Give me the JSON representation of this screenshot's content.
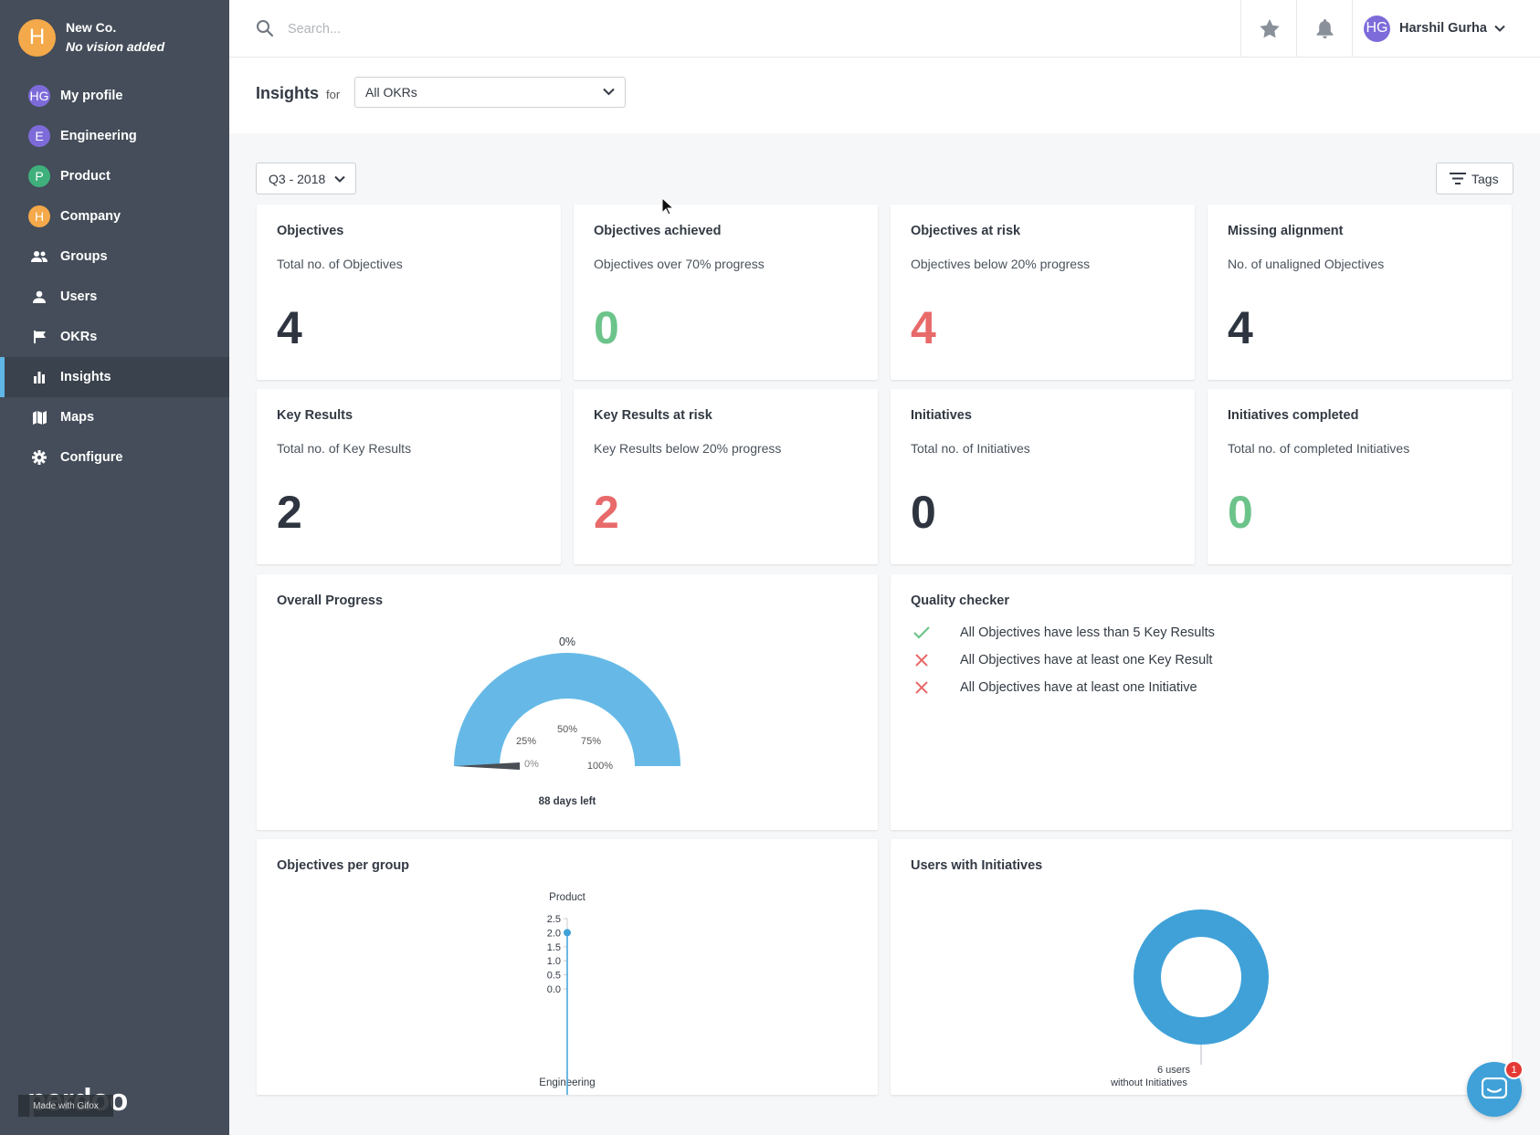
{
  "org": {
    "initial": "H",
    "name": "New Co.",
    "vision": "No vision added"
  },
  "sidebar": {
    "items": [
      {
        "label": "My profile",
        "avatar": "HG",
        "color": "#7d6bd9"
      },
      {
        "label": "Engineering",
        "avatar": "E",
        "color": "#7d6bd9"
      },
      {
        "label": "Product",
        "avatar": "P",
        "color": "#3fb07c"
      },
      {
        "label": "Company",
        "avatar": "H",
        "color": "#f4a94a"
      },
      {
        "label": "Groups",
        "icon": "groups-icon"
      },
      {
        "label": "Users",
        "icon": "user-icon"
      },
      {
        "label": "OKRs",
        "icon": "flag-icon"
      },
      {
        "label": "Insights",
        "icon": "bar-chart-icon",
        "active": true
      },
      {
        "label": "Maps",
        "icon": "map-icon"
      },
      {
        "label": "Configure",
        "icon": "gear-icon"
      }
    ],
    "logo": "perdoo",
    "watermark": "Made with Gifox"
  },
  "topbar": {
    "search_placeholder": "Search...",
    "user_initials": "HG",
    "user_name": "Harshil Gurha"
  },
  "insights": {
    "title": "Insights",
    "for_label": "for",
    "selected_filter": "All OKRs",
    "quarter": "Q3 - 2018",
    "tags_label": "Tags"
  },
  "stats": [
    {
      "title": "Objectives",
      "subtitle": "Total no. of Objectives",
      "value": "4",
      "tone": "dark"
    },
    {
      "title": "Objectives achieved",
      "subtitle": "Objectives over 70% progress",
      "value": "0",
      "tone": "green"
    },
    {
      "title": "Objectives at risk",
      "subtitle": "Objectives below 20% progress",
      "value": "4",
      "tone": "red"
    },
    {
      "title": "Missing alignment",
      "subtitle": "No. of unaligned Objectives",
      "value": "4",
      "tone": "dark"
    },
    {
      "title": "Key Results",
      "subtitle": "Total no. of Key Results",
      "value": "2",
      "tone": "dark"
    },
    {
      "title": "Key Results at risk",
      "subtitle": "Key Results below 20% progress",
      "value": "2",
      "tone": "red"
    },
    {
      "title": "Initiatives",
      "subtitle": "Total no. of Initiatives",
      "value": "0",
      "tone": "dark"
    },
    {
      "title": "Initiatives completed",
      "subtitle": "Total no. of completed Initiatives",
      "value": "0",
      "tone": "green"
    }
  ],
  "overall_progress": {
    "title": "Overall Progress",
    "value_label": "0%",
    "progress": 0,
    "tick_labels": [
      "0%",
      "25%",
      "50%",
      "75%",
      "100%"
    ],
    "days_left": "88 days left"
  },
  "quality_checker": {
    "title": "Quality checker",
    "items": [
      {
        "text": "All Objectives have less than 5 Key Results",
        "passed": true
      },
      {
        "text": "All Objectives have at least one Key Result",
        "passed": false
      },
      {
        "text": "All Objectives have at least one Initiative",
        "passed": false
      }
    ]
  },
  "objectives_per_group": {
    "title": "Objectives per group",
    "top_label": "Product",
    "bottom_label": "Engineering",
    "y_ticks": [
      "2.5",
      "2.0",
      "1.5",
      "1.0",
      "0.5",
      "0.0"
    ]
  },
  "users_with_initiatives": {
    "title": "Users with Initiatives",
    "label_line1": "6 users",
    "label_line2": "without Initiatives"
  },
  "chat_badge": "1",
  "chart_data": [
    {
      "type": "gauge",
      "title": "Overall Progress",
      "value": 0,
      "range": [
        0,
        100
      ],
      "unit": "%",
      "ticks": [
        "0%",
        "25%",
        "50%",
        "75%",
        "100%"
      ]
    },
    {
      "type": "radar",
      "title": "Objectives per group",
      "categories": [
        "Product",
        "Engineering"
      ],
      "values": [
        2,
        0
      ],
      "y_ticks": [
        0.0,
        0.5,
        1.0,
        1.5,
        2.0,
        2.5
      ],
      "color": "#3fa1d8"
    },
    {
      "type": "pie",
      "title": "Users with Initiatives",
      "categories": [
        "without Initiatives"
      ],
      "values": [
        6
      ],
      "color": "#3fa1d8"
    }
  ]
}
